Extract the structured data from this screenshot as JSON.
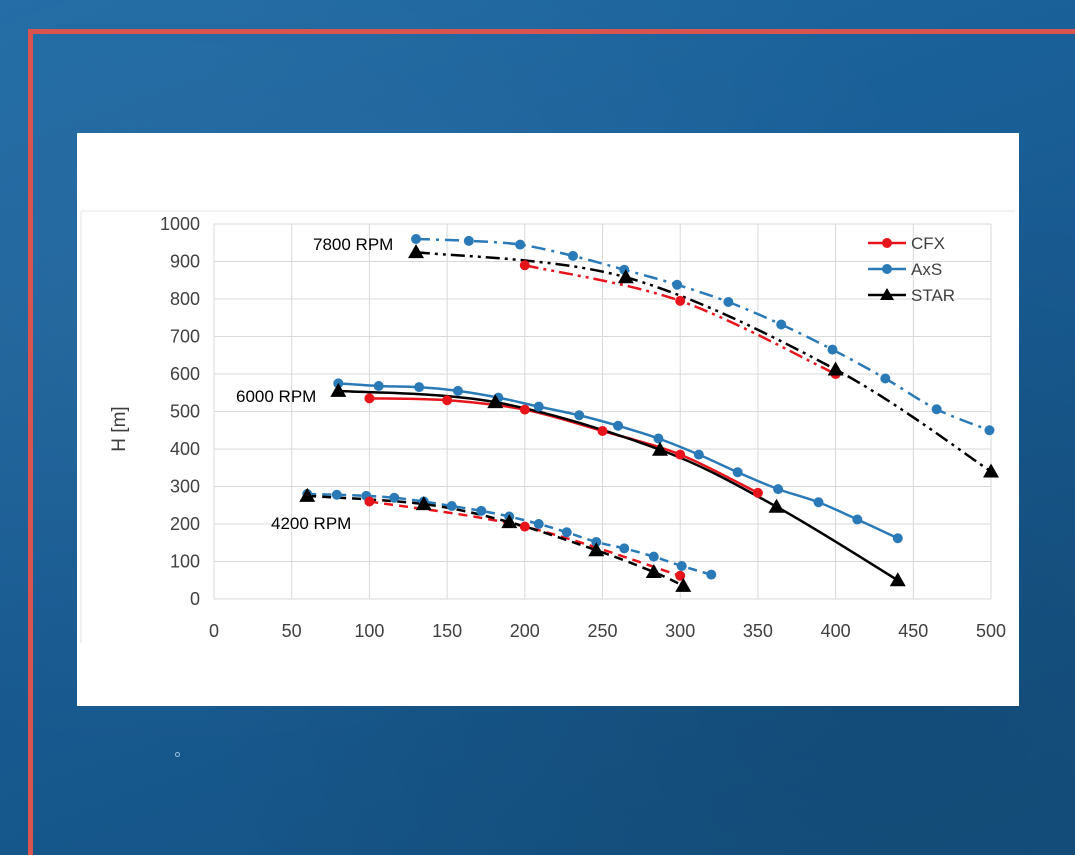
{
  "chart_data": {
    "type": "line",
    "xlim": [
      0,
      500
    ],
    "ylim": [
      0,
      1000
    ],
    "x_ticks": [
      0,
      50,
      100,
      150,
      200,
      250,
      300,
      350,
      400,
      450,
      500
    ],
    "y_ticks": [
      0,
      100,
      200,
      300,
      400,
      500,
      600,
      700,
      800,
      900,
      1000
    ],
    "xlabel": "",
    "ylabel": "H [m]",
    "grid": true,
    "legend_position": "top-right",
    "legend": [
      "CFX",
      "AxS",
      "STAR"
    ],
    "colors": {
      "CFX": "#e8141c",
      "AxS": "#2a7ab8",
      "STAR": "#000000"
    },
    "annotations": [
      "7800 RPM",
      "6000 RPM",
      "4200 RPM"
    ],
    "series": [
      {
        "name": "CFX",
        "group": "7800 RPM",
        "style": "dash-dot-dot",
        "x": [
          200,
          300,
          400
        ],
        "y": [
          890,
          795,
          600
        ]
      },
      {
        "name": "AxS",
        "group": "7800 RPM",
        "style": "dash-dot",
        "x": [
          130,
          164,
          197,
          231,
          264,
          298,
          331,
          365,
          398,
          432,
          465,
          499
        ],
        "y": [
          960,
          955,
          945,
          915,
          878,
          838,
          792,
          732,
          665,
          588,
          506,
          450
        ]
      },
      {
        "name": "STAR",
        "group": "7800 RPM",
        "style": "dash-dot-dot",
        "x": [
          130,
          265,
          400,
          500
        ],
        "y": [
          925,
          858,
          612,
          340
        ]
      },
      {
        "name": "CFX",
        "group": "6000 RPM",
        "style": "solid",
        "x": [
          100,
          150,
          200,
          250,
          300,
          350
        ],
        "y": [
          535,
          530,
          505,
          448,
          385,
          283
        ]
      },
      {
        "name": "AxS",
        "group": "6000 RPM",
        "style": "solid",
        "x": [
          80,
          106,
          132,
          157,
          183,
          209,
          235,
          260,
          286,
          312,
          337,
          363,
          389,
          414,
          440
        ],
        "y": [
          575,
          568,
          565,
          555,
          537,
          513,
          490,
          462,
          428,
          385,
          338,
          293,
          258,
          212,
          162
        ]
      },
      {
        "name": "STAR",
        "group": "6000 RPM",
        "style": "solid",
        "x": [
          80,
          181,
          287,
          362,
          440
        ],
        "y": [
          555,
          525,
          398,
          246,
          50
        ]
      },
      {
        "name": "CFX",
        "group": "4200 RPM",
        "style": "dashed",
        "x": [
          100,
          200,
          300
        ],
        "y": [
          260,
          193,
          62
        ]
      },
      {
        "name": "AxS",
        "group": "4200 RPM",
        "style": "dashed",
        "x": [
          60,
          79,
          98,
          116,
          135,
          153,
          172,
          190,
          209,
          227,
          246,
          264,
          283,
          301,
          320
        ],
        "y": [
          280,
          278,
          275,
          270,
          260,
          248,
          235,
          220,
          200,
          178,
          152,
          135,
          113,
          88,
          65
        ]
      },
      {
        "name": "STAR",
        "group": "4200 RPM",
        "style": "dashed",
        "x": [
          60,
          135,
          190,
          246,
          283,
          302
        ],
        "y": [
          275,
          253,
          205,
          130,
          72,
          35
        ]
      }
    ]
  }
}
